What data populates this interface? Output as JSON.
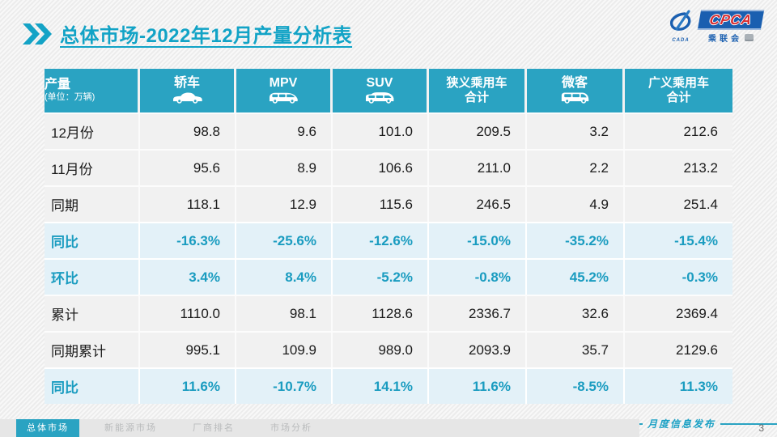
{
  "slide": {
    "title": "总体市场-2022年12月产量分析表",
    "footer_note": "月度信息发布",
    "page_number": "3"
  },
  "logo": {
    "cpca": "CPCA",
    "cpca_sub": "乘联会",
    "emblem_sub": "CADA",
    "watermark": "CPCA 乘联会"
  },
  "table": {
    "header": {
      "col0_title": "产量",
      "col0_sub": "(单位：万辆)",
      "columns": [
        {
          "label": "轿车",
          "icon": "sedan-icon"
        },
        {
          "label": "MPV",
          "icon": "mpv-icon"
        },
        {
          "label": "SUV",
          "icon": "suv-icon"
        },
        {
          "label": "狭义乘用车",
          "label2": "合计"
        },
        {
          "label": "微客",
          "icon": "microvan-icon"
        },
        {
          "label": "广义乘用车",
          "label2": "合计"
        }
      ]
    },
    "rows": [
      {
        "label": "12月份",
        "highlight": false,
        "values": [
          "98.8",
          "9.6",
          "101.0",
          "209.5",
          "3.2",
          "212.6"
        ]
      },
      {
        "label": "11月份",
        "highlight": false,
        "values": [
          "95.6",
          "8.9",
          "106.6",
          "211.0",
          "2.2",
          "213.2"
        ]
      },
      {
        "label": "同期",
        "highlight": false,
        "values": [
          "118.1",
          "12.9",
          "115.6",
          "246.5",
          "4.9",
          "251.4"
        ]
      },
      {
        "label": "同比",
        "highlight": true,
        "values": [
          "-16.3%",
          "-25.6%",
          "-12.6%",
          "-15.0%",
          "-35.2%",
          "-15.4%"
        ]
      },
      {
        "label": "环比",
        "highlight": true,
        "values": [
          "3.4%",
          "8.4%",
          "-5.2%",
          "-0.8%",
          "45.2%",
          "-0.3%"
        ]
      },
      {
        "label": "累计",
        "highlight": false,
        "values": [
          "1110.0",
          "98.1",
          "1128.6",
          "2336.7",
          "32.6",
          "2369.4"
        ]
      },
      {
        "label": "同期累计",
        "highlight": false,
        "values": [
          "995.1",
          "109.9",
          "989.0",
          "2093.9",
          "35.7",
          "2129.6"
        ]
      },
      {
        "label": "同比",
        "highlight": true,
        "values": [
          "11.6%",
          "-10.7%",
          "14.1%",
          "11.6%",
          "-8.5%",
          "11.3%"
        ]
      }
    ]
  },
  "footer": {
    "tabs": [
      {
        "label": "总体市场",
        "active": true
      },
      {
        "label": "新能源市场",
        "active": false
      },
      {
        "label": "厂商排名",
        "active": false
      },
      {
        "label": "市场分析",
        "active": false
      }
    ]
  },
  "colors": {
    "accent_teal": "#2AA3C2",
    "title_teal": "#12A3C6",
    "highlight_row_bg": "#E3F1F8",
    "highlight_text": "#1A9CC0",
    "logo_blue": "#1A5FB0",
    "logo_red": "#D62B30",
    "slide_bg": "#F2F2F2"
  }
}
